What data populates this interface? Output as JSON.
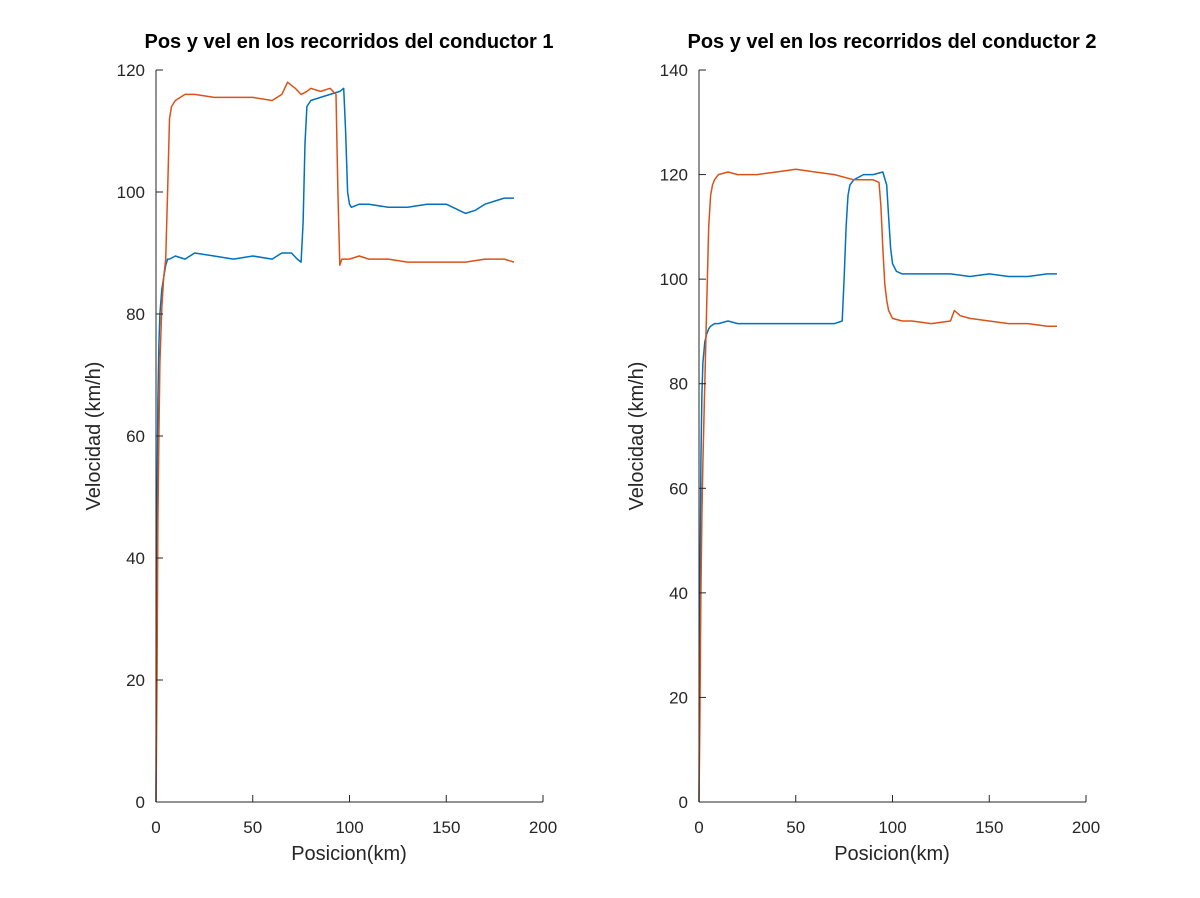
{
  "chart_data": [
    {
      "type": "line",
      "title": "Pos y vel en los recorridos del conductor 1",
      "xlabel": "Posicion(km)",
      "ylabel": "Velocidad (km/h)",
      "xlim": [
        0,
        200
      ],
      "ylim": [
        0,
        120
      ],
      "xticks": [
        0,
        50,
        100,
        150,
        200
      ],
      "yticks": [
        0,
        20,
        40,
        60,
        80,
        100,
        120
      ],
      "xtick_labels": [
        "0",
        "50",
        "100",
        "150",
        "200"
      ],
      "ytick_labels": [
        "0",
        "20",
        "40",
        "60",
        "80",
        "100",
        "120"
      ],
      "grid": false,
      "legend": "none",
      "series": [
        {
          "color": "#0072BD",
          "x": [
            0,
            0.5,
            1,
            1.5,
            2,
            3,
            4,
            5,
            6,
            7,
            10,
            15,
            20,
            30,
            40,
            50,
            60,
            65,
            70,
            73,
            75,
            76,
            77,
            78,
            80,
            85,
            90,
            95,
            97,
            98,
            99,
            100,
            101,
            105,
            110,
            120,
            130,
            140,
            150,
            160,
            165,
            170,
            175,
            180,
            185
          ],
          "y": [
            0,
            47,
            66,
            75,
            80,
            84,
            86,
            88,
            89,
            89,
            89.5,
            89,
            90,
            89.5,
            89,
            89.5,
            89,
            90,
            90,
            89,
            88.5,
            95,
            108,
            114,
            115,
            115.5,
            116,
            116.5,
            117,
            110,
            100,
            98,
            97.5,
            98,
            98,
            97.5,
            97.5,
            98,
            98,
            96.5,
            97,
            98,
            98.5,
            99,
            99
          ]
        },
        {
          "color": "#D95319",
          "x": [
            0,
            0.5,
            1,
            1.5,
            2,
            3,
            4,
            5,
            6,
            7,
            8,
            10,
            15,
            20,
            30,
            40,
            50,
            60,
            65,
            68,
            70,
            72,
            75,
            78,
            80,
            85,
            90,
            93,
            94,
            95,
            96,
            100,
            105,
            110,
            120,
            130,
            140,
            150,
            160,
            170,
            180,
            185
          ],
          "y": [
            0,
            20,
            46,
            60,
            72,
            81,
            86,
            89,
            100,
            112,
            114,
            115,
            116,
            116,
            115.5,
            115.5,
            115.5,
            115,
            116,
            118,
            117.5,
            117,
            116,
            116.5,
            117,
            116.5,
            117,
            116,
            100,
            88,
            89,
            89,
            89.5,
            89,
            89,
            88.5,
            88.5,
            88.5,
            88.5,
            89,
            89,
            88.5
          ]
        }
      ]
    },
    {
      "type": "line",
      "title": "Pos y vel en los recorridos del conductor 2",
      "xlabel": "Posicion(km)",
      "ylabel": "Velocidad (km/h)",
      "xlim": [
        0,
        200
      ],
      "ylim": [
        0,
        140
      ],
      "xticks": [
        0,
        50,
        100,
        150,
        200
      ],
      "yticks": [
        0,
        20,
        40,
        60,
        80,
        100,
        120,
        140
      ],
      "xtick_labels": [
        "0",
        "50",
        "100",
        "150",
        "200"
      ],
      "ytick_labels": [
        "0",
        "20",
        "40",
        "60",
        "80",
        "100",
        "120",
        "140"
      ],
      "grid": false,
      "legend": "none",
      "series": [
        {
          "color": "#0072BD",
          "x": [
            0,
            0.5,
            1,
            1.5,
            2,
            3,
            4,
            5,
            6,
            8,
            10,
            15,
            20,
            30,
            40,
            50,
            60,
            70,
            74,
            75,
            76,
            77,
            78,
            80,
            85,
            90,
            95,
            97,
            98,
            99,
            100,
            102,
            105,
            110,
            120,
            130,
            140,
            150,
            160,
            170,
            180,
            185
          ],
          "y": [
            0,
            40,
            65,
            78,
            84,
            88,
            89.5,
            90.5,
            91,
            91.5,
            91.5,
            92,
            91.5,
            91.5,
            91.5,
            91.5,
            91.5,
            91.5,
            92,
            100,
            110,
            116,
            118,
            119,
            120,
            120,
            120.5,
            118,
            112,
            106,
            103,
            101.5,
            101,
            101,
            101,
            101,
            100.5,
            101,
            100.5,
            100.5,
            101,
            101
          ]
        },
        {
          "color": "#D95319",
          "x": [
            0,
            0.5,
            1,
            1.5,
            2,
            3,
            4,
            5,
            6,
            7,
            8,
            10,
            15,
            20,
            30,
            40,
            50,
            60,
            70,
            80,
            90,
            93,
            94,
            95,
            96,
            97,
            98,
            100,
            105,
            110,
            120,
            130,
            132,
            135,
            140,
            150,
            160,
            170,
            180,
            185
          ],
          "y": [
            0,
            18,
            40,
            55,
            65,
            80,
            95,
            110,
            116,
            118,
            119,
            120,
            120.5,
            120,
            120,
            120.5,
            121,
            120.5,
            120,
            119,
            119,
            118.5,
            114,
            106,
            99,
            96,
            94,
            92.5,
            92,
            92,
            91.5,
            92,
            94,
            93,
            92.5,
            92,
            91.5,
            91.5,
            91,
            91
          ]
        }
      ]
    }
  ]
}
